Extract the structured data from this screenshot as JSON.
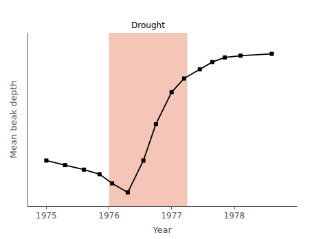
{
  "chart_data": {
    "type": "line",
    "x": [
      1975.0,
      1975.3,
      1975.6,
      1975.85,
      1976.05,
      1976.3,
      1976.55,
      1976.75,
      1977.0,
      1977.2,
      1977.45,
      1977.65,
      1977.85,
      1978.1,
      1978.6
    ],
    "values": [
      8.8,
      8.75,
      8.7,
      8.65,
      8.55,
      8.45,
      8.8,
      9.2,
      9.55,
      9.7,
      9.8,
      9.88,
      9.93,
      9.95,
      9.97
    ],
    "color": "#000000",
    "marker": "square",
    "xlabel": "Year",
    "ylabel": "Mean beak depth",
    "xlim": [
      1974.7,
      1979.0
    ],
    "ylim": [
      8.3,
      10.2
    ],
    "xticks": [
      1975,
      1976,
      1977,
      1978
    ],
    "yticks": [],
    "tick_labels": "x",
    "grid": false,
    "annotations": [
      {
        "text": "Drought",
        "x": [
          1976.0,
          1977.25
        ],
        "color": "#f5c5b8"
      }
    ]
  }
}
